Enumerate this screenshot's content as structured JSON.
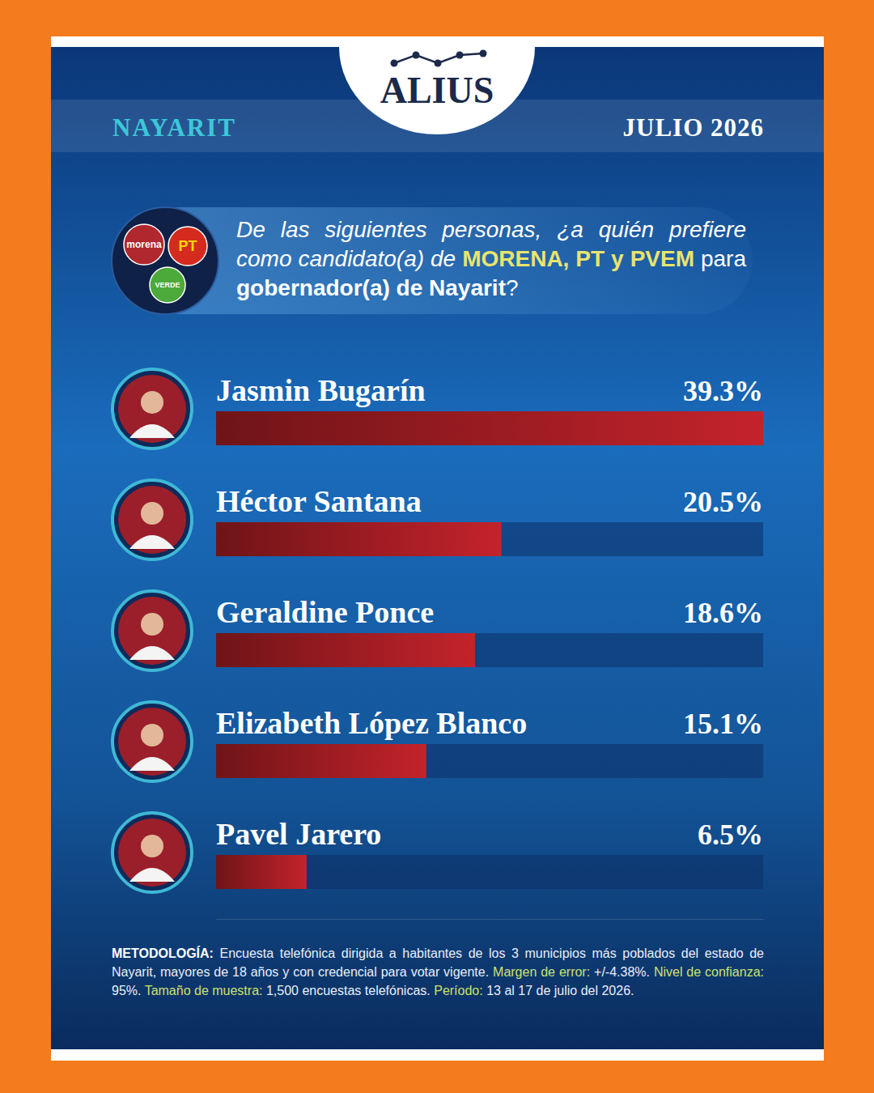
{
  "header": {
    "brand": "ALIUS",
    "region": "NAYARIT",
    "date": "JULIO 2026"
  },
  "logos": [
    "morena",
    "PT",
    "VERDE"
  ],
  "question": {
    "lead": "De las siguientes personas, ¿a quién prefiere como candidato(a) de ",
    "parties": "MORENA, PT y PVEM",
    "middle": " para ",
    "office": "gobernador(a) de Nayarit",
    "end": "?"
  },
  "chart_data": {
    "type": "bar",
    "orientation": "horizontal",
    "categories": [
      "Jasmin Bugarín",
      "Héctor Santana",
      "Geraldine Ponce",
      "Elizabeth López Blanco",
      "Pavel Jarero"
    ],
    "values": [
      39.3,
      20.5,
      18.6,
      15.1,
      6.5
    ],
    "value_labels": [
      "39.3%",
      "20.5%",
      "18.6%",
      "15.1%",
      "6.5%"
    ],
    "color": "#c4232b",
    "xlim": [
      0,
      39.3
    ],
    "tick_labels": false,
    "data_labels": true
  },
  "methodology": {
    "label": "METODOLOGÍA:",
    "text": "Encuesta telefónica dirigida a habitantes de los 3 municipios más poblados del estado de Nayarit, mayores de 18 años y con credencial para votar vigente.",
    "items": [
      {
        "label": "Margen de error:",
        "value": "+/-4.38%."
      },
      {
        "label": "Nivel de confianza:",
        "value": "95%."
      },
      {
        "label": "Tamaño de muestra:",
        "value": "1,500 encuestas telefónicas."
      },
      {
        "label": "Período:",
        "value": "13 al 17 de julio del 2026."
      }
    ]
  }
}
